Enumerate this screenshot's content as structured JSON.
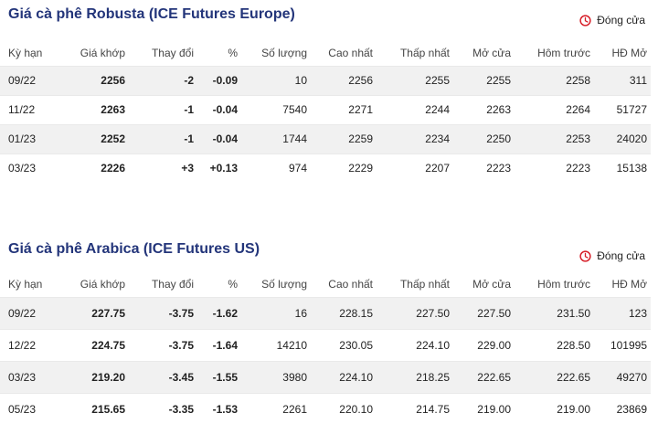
{
  "colors": {
    "title": "#23357a",
    "negative": "#e0222e",
    "positive": "#1d8a2e",
    "clock": "#d71e28"
  },
  "status_icon": "clock-icon",
  "robusta": {
    "title": "Giá cà phê Robusta (ICE Futures Europe)",
    "status": "Đóng cửa",
    "headers": [
      "Kỳ hạn",
      "Giá khớp",
      "Thay đổi",
      "%",
      "Số lượng",
      "Cao nhất",
      "Thấp nhất",
      "Mở cửa",
      "Hôm trước",
      "HĐ Mở"
    ],
    "rows": [
      {
        "term": "09/22",
        "price": "2256",
        "change": "-2",
        "pct": "-0.09",
        "volume": "10",
        "high": "2256",
        "low": "2255",
        "open": "2255",
        "prev": "2258",
        "oi": "311",
        "dir": "neg"
      },
      {
        "term": "11/22",
        "price": "2263",
        "change": "-1",
        "pct": "-0.04",
        "volume": "7540",
        "high": "2271",
        "low": "2244",
        "open": "2263",
        "prev": "2264",
        "oi": "51727",
        "dir": "neg"
      },
      {
        "term": "01/23",
        "price": "2252",
        "change": "-1",
        "pct": "-0.04",
        "volume": "1744",
        "high": "2259",
        "low": "2234",
        "open": "2250",
        "prev": "2253",
        "oi": "24020",
        "dir": "neg"
      },
      {
        "term": "03/23",
        "price": "2226",
        "change": "+3",
        "pct": "+0.13",
        "volume": "974",
        "high": "2229",
        "low": "2207",
        "open": "2223",
        "prev": "2223",
        "oi": "15138",
        "dir": "pos"
      }
    ]
  },
  "arabica": {
    "title": "Giá cà phê Arabica (ICE Futures US)",
    "status": "Đóng cửa",
    "headers": [
      "Kỳ hạn",
      "Giá khớp",
      "Thay đổi",
      "%",
      "Số lượng",
      "Cao nhất",
      "Thấp nhất",
      "Mở cửa",
      "Hôm trước",
      "HĐ Mở"
    ],
    "rows": [
      {
        "term": "09/22",
        "price": "227.75",
        "change": "-3.75",
        "pct": "-1.62",
        "volume": "16",
        "high": "228.15",
        "low": "227.50",
        "open": "227.50",
        "prev": "231.50",
        "oi": "123",
        "dir": "neg"
      },
      {
        "term": "12/22",
        "price": "224.75",
        "change": "-3.75",
        "pct": "-1.64",
        "volume": "14210",
        "high": "230.05",
        "low": "224.10",
        "open": "229.00",
        "prev": "228.50",
        "oi": "101995",
        "dir": "neg"
      },
      {
        "term": "03/23",
        "price": "219.20",
        "change": "-3.45",
        "pct": "-1.55",
        "volume": "3980",
        "high": "224.10",
        "low": "218.25",
        "open": "222.65",
        "prev": "222.65",
        "oi": "49270",
        "dir": "neg"
      },
      {
        "term": "05/23",
        "price": "215.65",
        "change": "-3.35",
        "pct": "-1.53",
        "volume": "2261",
        "high": "220.10",
        "low": "214.75",
        "open": "219.00",
        "prev": "219.00",
        "oi": "23869",
        "dir": "neg"
      }
    ]
  }
}
